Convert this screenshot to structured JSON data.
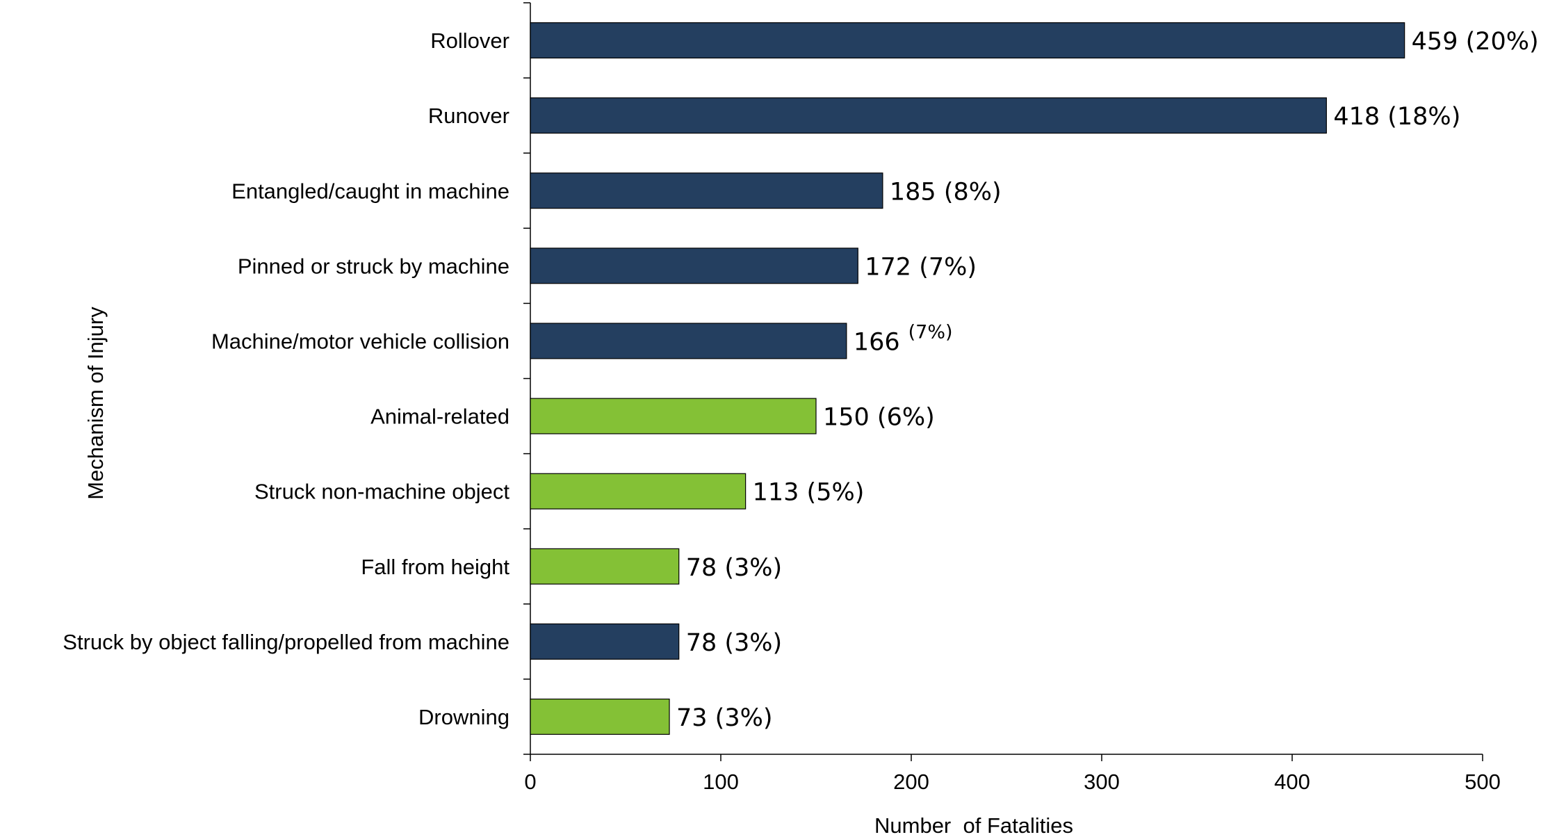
{
  "chart_data": {
    "type": "bar",
    "orientation": "horizontal",
    "title": "",
    "xlabel": "Number  of Fatalities",
    "ylabel": "Mechanism of Injury",
    "xlim": [
      0,
      500
    ],
    "xticks": [
      0,
      100,
      200,
      300,
      400,
      500
    ],
    "grid": false,
    "legend": "none",
    "colors": {
      "machine": "#243f60",
      "non_machine": "#84c136"
    },
    "bars": [
      {
        "category": "Rollover",
        "value": 459,
        "label": "459 (20%)",
        "group": "machine"
      },
      {
        "category": "Runover",
        "value": 418,
        "label": "418 (18%)",
        "group": "machine"
      },
      {
        "category": "Entangled/caught in machine",
        "value": 185,
        "label": "185 (8%)",
        "group": "machine"
      },
      {
        "category": "Pinned or struck by machine",
        "value": 172,
        "label": "172 (7%)",
        "group": "machine"
      },
      {
        "category": "Machine/motor vehicle collision",
        "value": 166,
        "label": "166",
        "label_superscript": "(7%)",
        "group": "machine"
      },
      {
        "category": "Animal-related",
        "value": 150,
        "label": "150 (6%)",
        "group": "non_machine"
      },
      {
        "category": "Struck non-machine object",
        "value": 113,
        "label": "113 (5%)",
        "group": "non_machine"
      },
      {
        "category": "Fall from height",
        "value": 78,
        "label": "78 (3%)",
        "group": "non_machine"
      },
      {
        "category": "Struck by object falling/propelled from machine",
        "value": 78,
        "label": "78 (3%)",
        "group": "machine"
      },
      {
        "category": "Drowning",
        "value": 73,
        "label": "73 (3%)",
        "group": "non_machine"
      }
    ]
  }
}
